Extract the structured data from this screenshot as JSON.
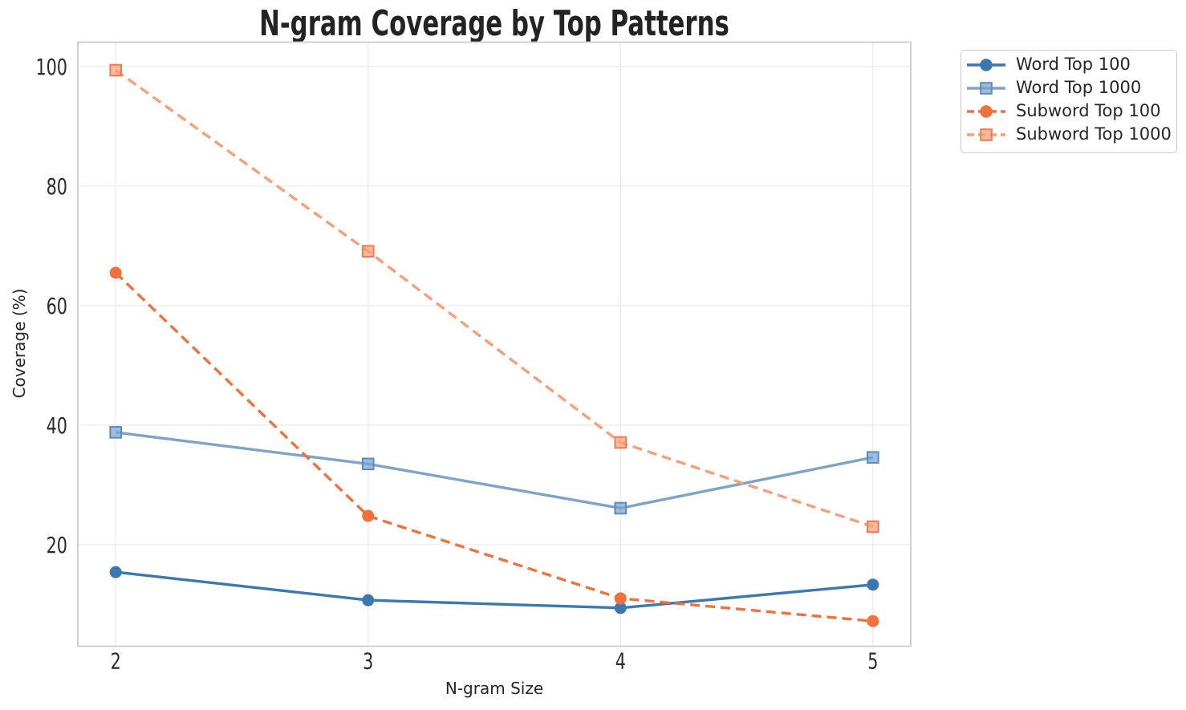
{
  "chart_data": {
    "type": "line",
    "title": "N-gram Coverage by Top Patterns",
    "xlabel": "N-gram Size",
    "ylabel": "Coverage (%)",
    "x": [
      2,
      3,
      4,
      5
    ],
    "xticks": [
      2,
      3,
      4,
      5
    ],
    "yticks": [
      20,
      40,
      60,
      80,
      100
    ],
    "xlim": [
      1.85,
      5.15
    ],
    "ylim": [
      3.0,
      104.1
    ],
    "grid": true,
    "legend_position": "outside upper right",
    "series": [
      {
        "name": "Word Top 100",
        "values": [
          15.4,
          10.7,
          9.4,
          13.3
        ],
        "color": "#3b78af",
        "marker_edge": "#3b78af",
        "linestyle": "solid",
        "marker": "circle"
      },
      {
        "name": "Word Top 1000",
        "values": [
          38.8,
          33.5,
          26.1,
          34.6
        ],
        "color": "#7da3cd",
        "marker_edge": "#5a8cc0",
        "linestyle": "solid",
        "marker": "square"
      },
      {
        "name": "Subword Top 100",
        "values": [
          65.5,
          24.8,
          11.0,
          7.2
        ],
        "color": "#f3703a",
        "marker_edge": "#f3703a",
        "linestyle": "dashed",
        "marker": "circle"
      },
      {
        "name": "Subword Top 1000",
        "values": [
          99.4,
          69.1,
          37.1,
          23.0
        ],
        "color": "#fa9e7a",
        "marker_edge": "#f4794e",
        "linestyle": "dashed",
        "marker": "square"
      }
    ]
  },
  "colors": {
    "background": "#ffffff",
    "grid": "#ebebee",
    "spine": "#c9c9ce",
    "text": "#262626",
    "legend_border": "#cccccc"
  }
}
